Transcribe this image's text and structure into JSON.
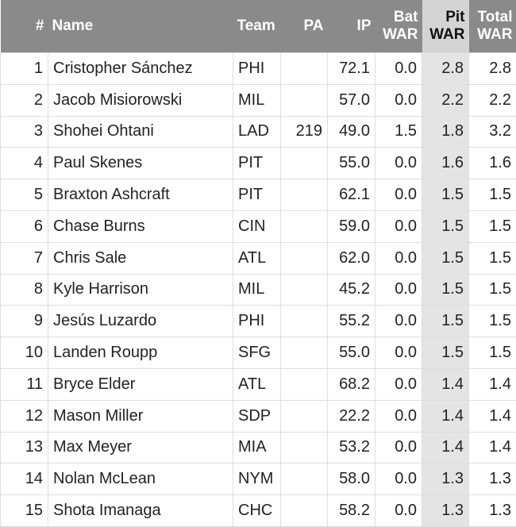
{
  "table": {
    "header": [
      "#",
      "Name",
      "Team",
      "PA",
      "IP",
      "Bat WAR",
      "Pit WAR",
      "Total WAR"
    ],
    "rows": [
      [
        "1",
        "Cristopher Sánchez",
        "PHI",
        null,
        "72.1",
        "0.0",
        "2.8",
        "2.8"
      ],
      [
        "2",
        "Jacob Misiorowski",
        "MIL",
        null,
        "57.0",
        "0.0",
        "2.2",
        "2.2"
      ],
      [
        "3",
        "Shohei Ohtani",
        "LAD",
        "219",
        "49.0",
        "1.5",
        "1.8",
        "3.2"
      ],
      [
        "4",
        "Paul Skenes",
        "PIT",
        null,
        "55.0",
        "0.0",
        "1.6",
        "1.6"
      ],
      [
        "5",
        "Braxton Ashcraft",
        "PIT",
        null,
        "62.1",
        "0.0",
        "1.5",
        "1.5"
      ],
      [
        "6",
        "Chase Burns",
        "CIN",
        null,
        "59.0",
        "0.0",
        "1.5",
        "1.5"
      ],
      [
        "7",
        "Chris Sale",
        "ATL",
        null,
        "62.0",
        "0.0",
        "1.5",
        "1.5"
      ],
      [
        "8",
        "Kyle Harrison",
        "MIL",
        null,
        "45.2",
        "0.0",
        "1.5",
        "1.5"
      ],
      [
        "9",
        "Jesús Luzardo",
        "PHI",
        null,
        "55.2",
        "0.0",
        "1.5",
        "1.5"
      ],
      [
        "10",
        "Landen Roupp",
        "SFG",
        null,
        "55.0",
        "0.0",
        "1.5",
        "1.5"
      ],
      [
        "11",
        "Bryce Elder",
        "ATL",
        null,
        "68.2",
        "0.0",
        "1.4",
        "1.4"
      ],
      [
        "12",
        "Mason Miller",
        "SDP",
        null,
        "22.2",
        "0.0",
        "1.4",
        "1.4"
      ],
      [
        "13",
        "Max Meyer",
        "MIA",
        null,
        "53.2",
        "0.0",
        "1.4",
        "1.4"
      ],
      [
        "14",
        "Nolan McLean",
        "NYM",
        null,
        "58.0",
        "0.0",
        "1.3",
        "1.3"
      ],
      [
        "15",
        "Shota Imanaga",
        "CHC",
        null,
        "58.2",
        "0.0",
        "1.3",
        "1.3"
      ]
    ]
  }
}
